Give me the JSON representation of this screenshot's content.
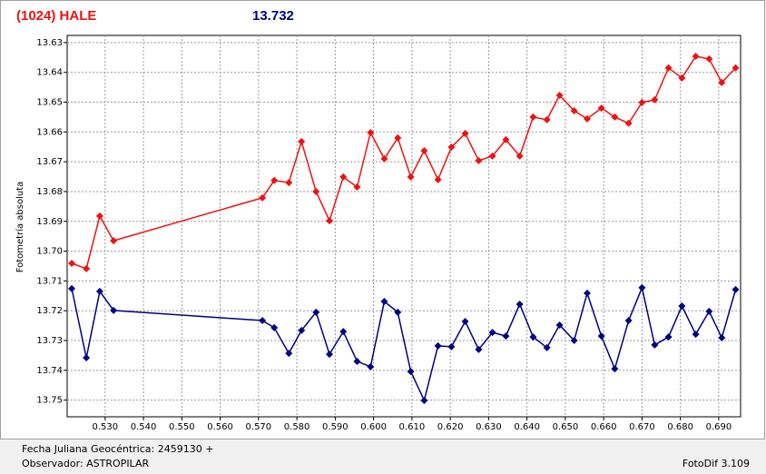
{
  "chart_data": {
    "type": "line",
    "title": "(1024) HALE",
    "subtitle": "13.732",
    "y_label": "Fotometría absoluta",
    "xlim": [
      0.5201,
      0.6957
    ],
    "ylim": [
      13.6276,
      13.7556
    ],
    "y_inverted": true,
    "grid": true,
    "xticks": [
      {
        "value": 0.53,
        "label": "0.530"
      },
      {
        "value": 0.54,
        "label": "0.540"
      },
      {
        "value": 0.55,
        "label": "0.550"
      },
      {
        "value": 0.56,
        "label": "0.560"
      },
      {
        "value": 0.57,
        "label": "0.570"
      },
      {
        "value": 0.58,
        "label": "0.580"
      },
      {
        "value": 0.59,
        "label": "0.590"
      },
      {
        "value": 0.6,
        "label": "0.600"
      },
      {
        "value": 0.61,
        "label": "0.610"
      },
      {
        "value": 0.62,
        "label": "0.620"
      },
      {
        "value": 0.63,
        "label": "0.630"
      },
      {
        "value": 0.64,
        "label": "0.640"
      },
      {
        "value": 0.65,
        "label": "0.650"
      },
      {
        "value": 0.66,
        "label": "0.660"
      },
      {
        "value": 0.67,
        "label": "0.670"
      },
      {
        "value": 0.68,
        "label": "0.680"
      },
      {
        "value": 0.69,
        "label": "0.690"
      }
    ],
    "yticks": [
      13.63,
      13.64,
      13.65,
      13.66,
      13.67,
      13.68,
      13.69,
      {
        "value": 13.7,
        "label": "13.70"
      },
      13.71,
      13.72,
      13.73,
      13.74,
      13.75
    ],
    "x": [
      0.5213,
      0.5251,
      0.5286,
      0.5322,
      0.571,
      0.5741,
      0.5779,
      0.5812,
      0.585,
      0.5885,
      0.5921,
      0.5957,
      0.5992,
      0.6028,
      0.6063,
      0.6097,
      0.6132,
      0.6168,
      0.6203,
      0.6239,
      0.6274,
      0.631,
      0.6345,
      0.6381,
      0.6416,
      0.6452,
      0.6485,
      0.6523,
      0.6557,
      0.6594,
      0.6629,
      0.6665,
      0.67,
      0.6733,
      0.6769,
      0.6804,
      0.684,
      0.6875,
      0.6908,
      0.6944
    ],
    "series": [
      {
        "color": "#ee1111",
        "values": [
          13.7041,
          13.7059,
          13.6882,
          13.6965,
          13.6821,
          13.6763,
          13.677,
          13.6632,
          13.68,
          13.6898,
          13.6751,
          13.6785,
          13.6602,
          13.669,
          13.662,
          13.6751,
          13.6663,
          13.676,
          13.6651,
          13.6605,
          13.6696,
          13.6681,
          13.6626,
          13.6681,
          13.655,
          13.6559,
          13.6477,
          13.6529,
          13.6556,
          13.652,
          13.655,
          13.6571,
          13.6501,
          13.6492,
          13.6385,
          13.6419,
          13.6346,
          13.6355,
          13.6434,
          13.6385
        ]
      },
      {
        "color": "#000080",
        "values": [
          13.7126,
          13.7358,
          13.7135,
          13.7199,
          13.7233,
          13.7257,
          13.7343,
          13.7266,
          13.7205,
          13.7346,
          13.727,
          13.737,
          13.7388,
          13.7169,
          13.7205,
          13.7404,
          13.7501,
          13.7318,
          13.7321,
          13.7236,
          13.733,
          13.7273,
          13.7285,
          13.7178,
          13.7288,
          13.7324,
          13.7248,
          13.73,
          13.7141,
          13.7285,
          13.7395,
          13.7233,
          13.7123,
          13.7315,
          13.7288,
          13.7184,
          13.7279,
          13.7202,
          13.7291,
          13.7129
        ]
      }
    ]
  },
  "footer": {
    "date": "Fecha Juliana Geocéntrica: 2459130 +",
    "observer": "Observador: ASTROPILAR",
    "version": "FotoDif 3.109"
  }
}
